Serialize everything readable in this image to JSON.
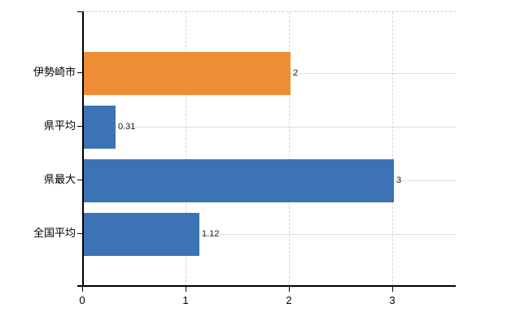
{
  "chart_data": {
    "type": "bar",
    "orientation": "horizontal",
    "categories": [
      "伊勢崎市",
      "県平均",
      "県最大",
      "全国平均"
    ],
    "values": [
      2,
      0.31,
      3,
      1.12
    ],
    "value_labels": [
      "2",
      "0.31",
      "3",
      "1.12"
    ],
    "bar_colors": [
      "#ed8e35",
      "#3b73b5",
      "#3b73b5",
      "#3b73b5"
    ],
    "highlight_color": "#ed8e35",
    "default_bar_color": "#3b73b5",
    "x_ticks": [
      "0",
      "1",
      "2",
      "3"
    ],
    "x_tick_values": [
      0,
      1,
      2,
      3
    ],
    "xlim": [
      0,
      3.61
    ],
    "grid": true,
    "legend_visible": false,
    "colors": {
      "axis": "#000000",
      "horizontal_grid": "#dde3da",
      "vertical_grid": "#d6d6d6",
      "top_border": "#cccccc",
      "text": "#000000",
      "background": "#ffffff"
    }
  }
}
